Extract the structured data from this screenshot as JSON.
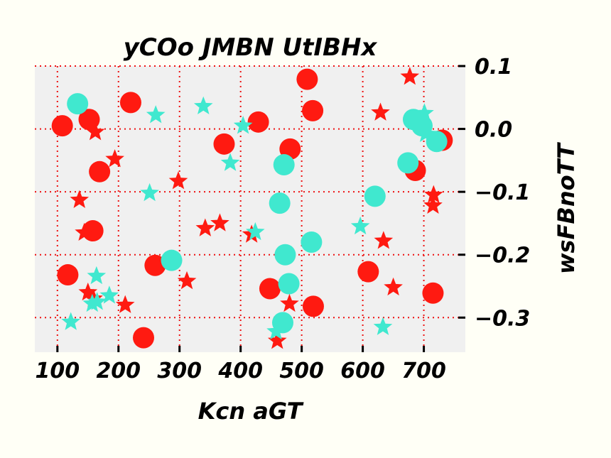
{
  "chart_data": {
    "type": "scatter",
    "title": "yCOo JMBN UtIBHx",
    "xlabel": "Kcn aGT",
    "ylabel": "wsFBnoTT",
    "xlim": [
      63,
      768
    ],
    "ylim": [
      -0.355,
      0.1
    ],
    "xticks": [
      100,
      200,
      300,
      400,
      500,
      600,
      700
    ],
    "xtick_labels": [
      "100",
      "200",
      "300",
      "400",
      "500",
      "600",
      "700"
    ],
    "yticks": [
      0.1,
      0.0,
      -0.1,
      -0.2,
      -0.3
    ],
    "ytick_labels": [
      "0.1",
      "0.0",
      "−0.1",
      "−0.2",
      "−0.3"
    ],
    "y_axis_side": "right",
    "grid": true,
    "colors": {
      "background": "#fffff6",
      "plot_area": "#f0f0f0",
      "grid": "#ee1111",
      "red": "#ff1a11",
      "turquoise": "#40e8cf"
    },
    "series": [
      {
        "marker": "circle",
        "color": "#ff1a11",
        "points": [
          [
            108,
            0.005
          ],
          [
            152,
            0.015
          ],
          [
            169,
            -0.068
          ],
          [
            158,
            -0.162
          ],
          [
            117,
            -0.232
          ],
          [
            220,
            0.042
          ],
          [
            260,
            -0.217
          ],
          [
            241,
            -0.332
          ],
          [
            373,
            -0.024
          ],
          [
            429,
            0.011
          ],
          [
            481,
            -0.032
          ],
          [
            509,
            0.079
          ],
          [
            518,
            0.029
          ],
          [
            448,
            -0.254
          ],
          [
            519,
            -0.282
          ],
          [
            609,
            -0.227
          ],
          [
            686,
            -0.066
          ],
          [
            730,
            -0.018
          ],
          [
            715,
            -0.261
          ]
        ]
      },
      {
        "marker": "circle",
        "color": "#40e8cf",
        "points": [
          [
            133,
            0.04
          ],
          [
            287,
            -0.209
          ],
          [
            471,
            -0.057
          ],
          [
            464,
            -0.118
          ],
          [
            473,
            -0.2
          ],
          [
            479,
            -0.246
          ],
          [
            469,
            -0.308
          ],
          [
            516,
            -0.18
          ],
          [
            620,
            -0.107
          ],
          [
            674,
            -0.054
          ],
          [
            683,
            0.015
          ],
          [
            697,
            0.005
          ],
          [
            721,
            -0.02
          ]
        ]
      },
      {
        "marker": "star",
        "color": "#ff1a11",
        "points": [
          [
            162,
            -0.005
          ],
          [
            194,
            -0.048
          ],
          [
            298,
            -0.083
          ],
          [
            136,
            -0.113
          ],
          [
            144,
            -0.165
          ],
          [
            150,
            -0.26
          ],
          [
            159,
            -0.27
          ],
          [
            211,
            -0.28
          ],
          [
            312,
            -0.242
          ],
          [
            342,
            -0.158
          ],
          [
            366,
            -0.15
          ],
          [
            418,
            -0.168
          ],
          [
            460,
            -0.337
          ],
          [
            480,
            -0.278
          ],
          [
            629,
            0.026
          ],
          [
            634,
            -0.178
          ],
          [
            650,
            -0.252
          ],
          [
            677,
            0.083
          ],
          [
            716,
            -0.105
          ],
          [
            715,
            -0.122
          ]
        ]
      },
      {
        "marker": "star",
        "color": "#40e8cf",
        "points": [
          [
            261,
            0.022
          ],
          [
            339,
            0.036
          ],
          [
            404,
            0.005
          ],
          [
            383,
            -0.054
          ],
          [
            251,
            -0.102
          ],
          [
            424,
            -0.164
          ],
          [
            164,
            -0.234
          ],
          [
            185,
            -0.265
          ],
          [
            157,
            -0.278
          ],
          [
            165,
            -0.275
          ],
          [
            122,
            -0.307
          ],
          [
            458,
            -0.322
          ],
          [
            596,
            -0.155
          ],
          [
            633,
            -0.315
          ],
          [
            701,
            0.025
          ],
          [
            703,
            -0.008
          ]
        ]
      }
    ]
  }
}
